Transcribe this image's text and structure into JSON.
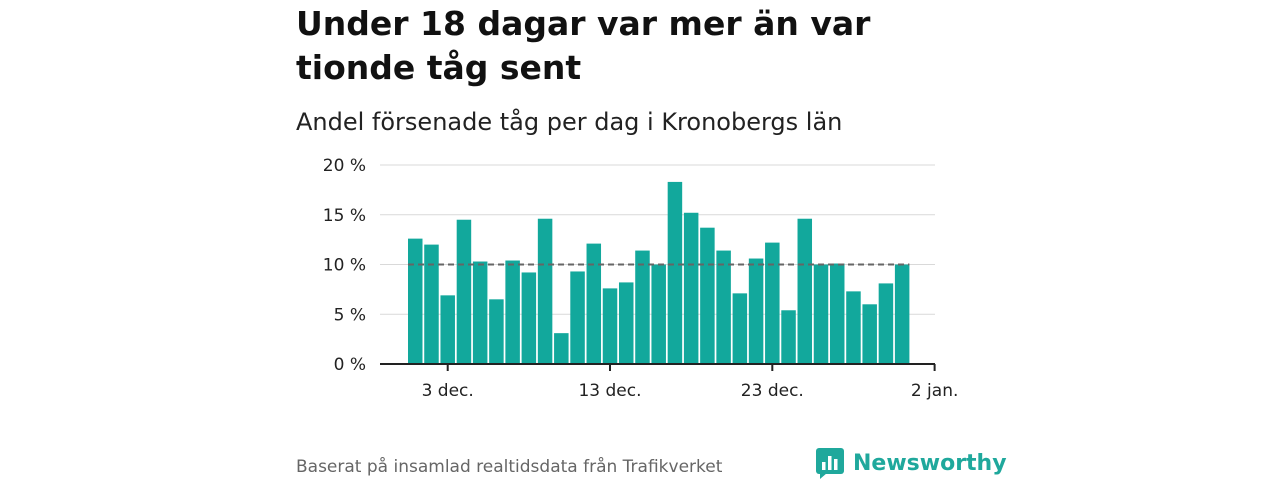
{
  "header": {
    "title": "Under 18 dagar var mer än var tionde tåg sent",
    "subtitle": "Andel försenade tåg per dag i Kronobergs län"
  },
  "footer": {
    "source": "Baserat på insamlad realtidsdata från Trafikverket",
    "brand": "Newsworthy"
  },
  "colors": {
    "bar": "#12a89c",
    "reference_line": "#666666",
    "grid": "#d9d9d9",
    "brand": "#1fa89c"
  },
  "chart_data": {
    "type": "bar",
    "unit": "%",
    "ylim": [
      0,
      20
    ],
    "yticks": [
      "0 %",
      "5 %",
      "10 %",
      "15 %",
      "20 %"
    ],
    "xtick_labels": [
      "3 dec.",
      "13 dec.",
      "23 dec.",
      "2 jan."
    ],
    "xtick_day_index": [
      2,
      12,
      22,
      32
    ],
    "reference_line": 10,
    "grid": true,
    "values": [
      12.6,
      12.0,
      6.9,
      14.5,
      10.3,
      6.5,
      10.4,
      9.2,
      14.6,
      3.1,
      9.3,
      12.1,
      7.6,
      8.2,
      11.4,
      10.0,
      18.3,
      15.2,
      13.7,
      11.4,
      7.1,
      10.6,
      12.2,
      5.4,
      14.6,
      10.0,
      10.1,
      7.3,
      6.0,
      8.1,
      10.0
    ]
  }
}
